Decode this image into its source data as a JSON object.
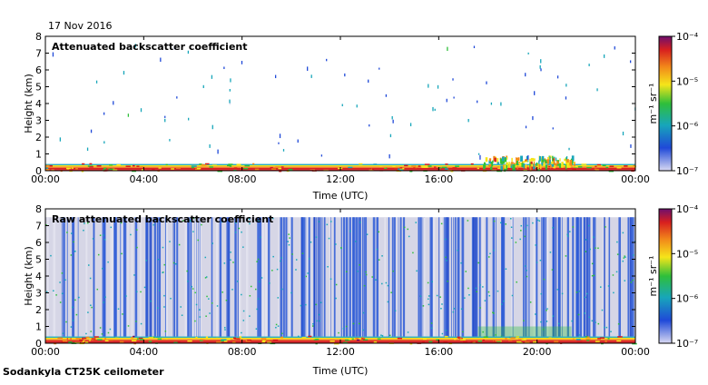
{
  "date": "17 Nov 2016",
  "footer": "Sodankyla CT25K ceilometer",
  "colorscale": {
    "stops": [
      "#d9d9f2",
      "#1f49d8",
      "#17a6ba",
      "#2fbf3a",
      "#f5e51a",
      "#f28a1a",
      "#d81f1f",
      "#6e0f6e"
    ],
    "ylabel": "m⁻¹ sr⁻¹"
  },
  "chart_data": [
    {
      "type": "heatmap",
      "title": "Attenuated backscatter coefficient",
      "xlabel": "Time (UTC)",
      "ylabel": "Height (km)",
      "xlim": [
        0,
        24
      ],
      "ylim": [
        0,
        8
      ],
      "xticks": [
        "00:00",
        "04:00",
        "08:00",
        "12:00",
        "16:00",
        "20:00",
        "00:00"
      ],
      "yticks": [
        "0",
        "1",
        "2",
        "3",
        "4",
        "5",
        "6",
        "7",
        "8"
      ],
      "colorbar": {
        "ticks": [
          "10⁻⁷",
          "10⁻⁶",
          "10⁻⁵",
          "10⁻⁴"
        ],
        "range_log10": [
          -7,
          -4
        ]
      },
      "features": [
        {
          "name": "surface layer",
          "height_km": [
            0,
            0.4
          ],
          "time_h": [
            0,
            24
          ],
          "log10_backscatter": -4.8
        },
        {
          "name": "low cloud",
          "height_km": [
            0.3,
            1.1
          ],
          "time_h": [
            17.8,
            21.5
          ],
          "log10_backscatter": -5.5
        }
      ]
    },
    {
      "type": "heatmap",
      "title": "Raw attenuated backscatter coefficient",
      "xlabel": "Time (UTC)",
      "ylabel": "Height (km)",
      "xlim": [
        0,
        24
      ],
      "ylim": [
        0,
        8
      ],
      "xticks": [
        "00:00",
        "04:00",
        "08:00",
        "12:00",
        "16:00",
        "20:00",
        "00:00"
      ],
      "yticks": [
        "0",
        "1",
        "2",
        "3",
        "4",
        "5",
        "6",
        "7",
        "8"
      ],
      "colorbar": {
        "ticks": [
          "10⁻⁷",
          "10⁻⁶",
          "10⁻⁵",
          "10⁻⁴"
        ],
        "range_log10": [
          -7,
          -4
        ]
      },
      "features": [
        {
          "name": "noise field",
          "height_km": [
            0.4,
            7.5
          ],
          "time_h": [
            0,
            24
          ],
          "log10_backscatter": -6.2
        },
        {
          "name": "surface layer",
          "height_km": [
            0,
            0.4
          ],
          "time_h": [
            0,
            24
          ],
          "log10_backscatter": -4.8
        }
      ]
    }
  ]
}
